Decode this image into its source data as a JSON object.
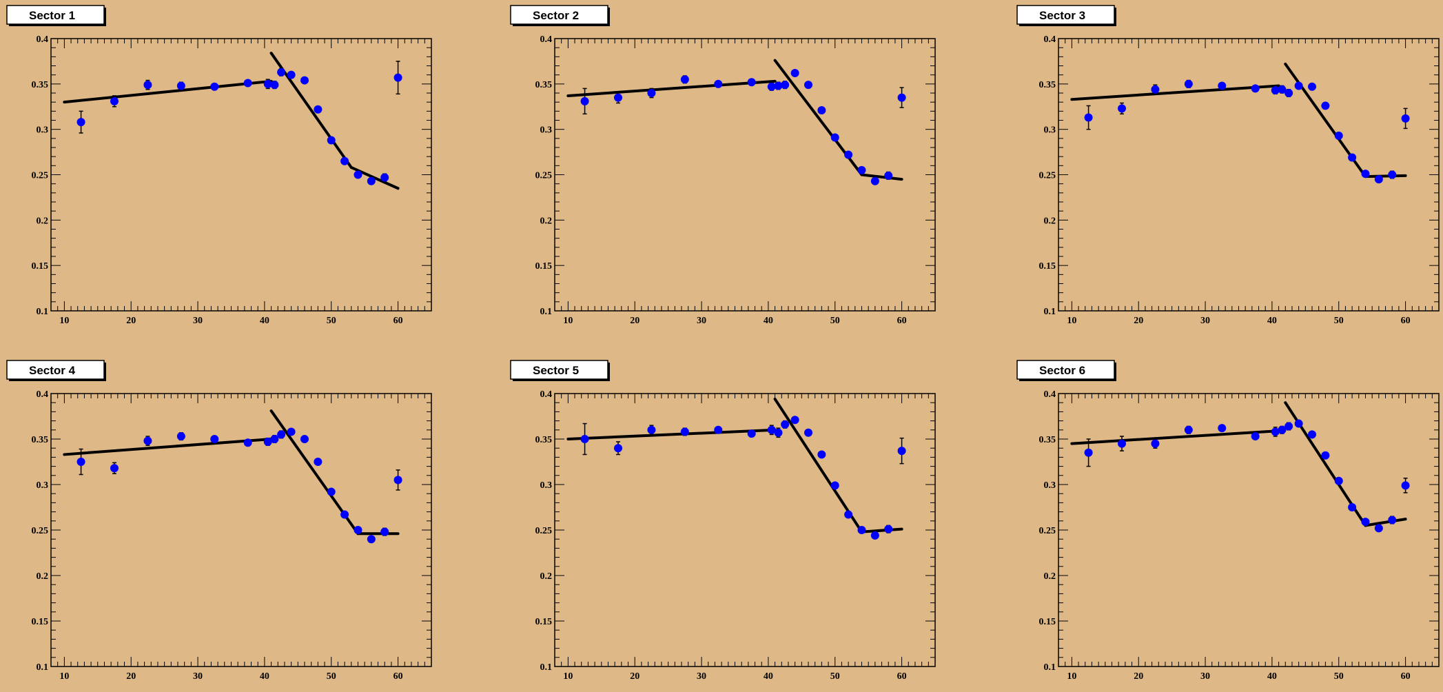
{
  "colors": {
    "background": "#deb887",
    "marker": "#0000ff",
    "fit_line": "#000000",
    "axis": "#000000",
    "title_box": "#ffffff"
  },
  "chart_data": [
    {
      "type": "scatter",
      "title": "Sector 1",
      "xlim": [
        8,
        65
      ],
      "ylim": [
        0.1,
        0.4
      ],
      "x_ticks": [
        "10",
        "20",
        "30",
        "40",
        "50",
        "60"
      ],
      "y_ticks": [
        "0.1",
        "0.15",
        "0.2",
        "0.25",
        "0.3",
        "0.35",
        "0.4"
      ],
      "points": [
        {
          "x": 12.5,
          "y": 0.308,
          "err": 0.012
        },
        {
          "x": 17.5,
          "y": 0.331,
          "err": 0.006
        },
        {
          "x": 22.5,
          "y": 0.349,
          "err": 0.005
        },
        {
          "x": 27.5,
          "y": 0.348,
          "err": 0.004
        },
        {
          "x": 32.5,
          "y": 0.347,
          "err": 0.003
        },
        {
          "x": 37.5,
          "y": 0.351,
          "err": 0.003
        },
        {
          "x": 40.5,
          "y": 0.35,
          "err": 0.005
        },
        {
          "x": 41.5,
          "y": 0.349,
          "err": 0.004
        },
        {
          "x": 42.5,
          "y": 0.363,
          "err": 0.004
        },
        {
          "x": 44.0,
          "y": 0.36,
          "err": 0.003
        },
        {
          "x": 46.0,
          "y": 0.354,
          "err": 0.003
        },
        {
          "x": 48.0,
          "y": 0.322,
          "err": 0.003
        },
        {
          "x": 50.0,
          "y": 0.288,
          "err": 0.003
        },
        {
          "x": 52.0,
          "y": 0.265,
          "err": 0.003
        },
        {
          "x": 54.0,
          "y": 0.25,
          "err": 0.003
        },
        {
          "x": 56.0,
          "y": 0.243,
          "err": 0.003
        },
        {
          "x": 58.0,
          "y": 0.247,
          "err": 0.004
        },
        {
          "x": 60.0,
          "y": 0.357,
          "err": 0.018
        }
      ],
      "fit_segments": [
        [
          [
            10,
            0.33
          ],
          [
            41,
            0.353
          ]
        ],
        [
          [
            41,
            0.384
          ],
          [
            53,
            0.258
          ]
        ],
        [
          [
            53,
            0.258
          ],
          [
            60,
            0.235
          ]
        ]
      ]
    },
    {
      "type": "scatter",
      "title": "Sector 2",
      "xlim": [
        8,
        65
      ],
      "ylim": [
        0.1,
        0.4
      ],
      "x_ticks": [
        "10",
        "20",
        "30",
        "40",
        "50",
        "60"
      ],
      "y_ticks": [
        "0.1",
        "0.15",
        "0.2",
        "0.25",
        "0.3",
        "0.35",
        "0.4"
      ],
      "points": [
        {
          "x": 12.5,
          "y": 0.331,
          "err": 0.014
        },
        {
          "x": 17.5,
          "y": 0.335,
          "err": 0.006
        },
        {
          "x": 22.5,
          "y": 0.34,
          "err": 0.005
        },
        {
          "x": 27.5,
          "y": 0.355,
          "err": 0.004
        },
        {
          "x": 32.5,
          "y": 0.35,
          "err": 0.003
        },
        {
          "x": 37.5,
          "y": 0.352,
          "err": 0.003
        },
        {
          "x": 40.5,
          "y": 0.347,
          "err": 0.004
        },
        {
          "x": 41.5,
          "y": 0.348,
          "err": 0.004
        },
        {
          "x": 42.5,
          "y": 0.349,
          "err": 0.004
        },
        {
          "x": 44.0,
          "y": 0.362,
          "err": 0.003
        },
        {
          "x": 46.0,
          "y": 0.349,
          "err": 0.003
        },
        {
          "x": 48.0,
          "y": 0.321,
          "err": 0.003
        },
        {
          "x": 50.0,
          "y": 0.291,
          "err": 0.003
        },
        {
          "x": 52.0,
          "y": 0.272,
          "err": 0.003
        },
        {
          "x": 54.0,
          "y": 0.255,
          "err": 0.003
        },
        {
          "x": 56.0,
          "y": 0.243,
          "err": 0.003
        },
        {
          "x": 58.0,
          "y": 0.249,
          "err": 0.004
        },
        {
          "x": 60.0,
          "y": 0.335,
          "err": 0.011
        }
      ],
      "fit_segments": [
        [
          [
            10,
            0.337
          ],
          [
            41,
            0.353
          ]
        ],
        [
          [
            41,
            0.376
          ],
          [
            54,
            0.25
          ]
        ],
        [
          [
            54,
            0.25
          ],
          [
            60,
            0.245
          ]
        ]
      ]
    },
    {
      "type": "scatter",
      "title": "Sector 3",
      "xlim": [
        8,
        65
      ],
      "ylim": [
        0.1,
        0.4
      ],
      "x_ticks": [
        "10",
        "20",
        "30",
        "40",
        "50",
        "60"
      ],
      "y_ticks": [
        "0.1",
        "0.15",
        "0.2",
        "0.25",
        "0.3",
        "0.35",
        "0.4"
      ],
      "points": [
        {
          "x": 12.5,
          "y": 0.313,
          "err": 0.013
        },
        {
          "x": 17.5,
          "y": 0.323,
          "err": 0.006
        },
        {
          "x": 22.5,
          "y": 0.344,
          "err": 0.005
        },
        {
          "x": 27.5,
          "y": 0.35,
          "err": 0.004
        },
        {
          "x": 32.5,
          "y": 0.348,
          "err": 0.003
        },
        {
          "x": 37.5,
          "y": 0.345,
          "err": 0.003
        },
        {
          "x": 40.5,
          "y": 0.343,
          "err": 0.004
        },
        {
          "x": 41.5,
          "y": 0.344,
          "err": 0.004
        },
        {
          "x": 42.5,
          "y": 0.34,
          "err": 0.004
        },
        {
          "x": 44.0,
          "y": 0.348,
          "err": 0.003
        },
        {
          "x": 46.0,
          "y": 0.347,
          "err": 0.003
        },
        {
          "x": 48.0,
          "y": 0.326,
          "err": 0.003
        },
        {
          "x": 50.0,
          "y": 0.293,
          "err": 0.003
        },
        {
          "x": 52.0,
          "y": 0.269,
          "err": 0.003
        },
        {
          "x": 54.0,
          "y": 0.251,
          "err": 0.003
        },
        {
          "x": 56.0,
          "y": 0.245,
          "err": 0.003
        },
        {
          "x": 58.0,
          "y": 0.25,
          "err": 0.004
        },
        {
          "x": 60.0,
          "y": 0.312,
          "err": 0.011
        }
      ],
      "fit_segments": [
        [
          [
            10,
            0.333
          ],
          [
            41,
            0.348
          ]
        ],
        [
          [
            42,
            0.372
          ],
          [
            54,
            0.248
          ]
        ],
        [
          [
            54,
            0.248
          ],
          [
            60,
            0.249
          ]
        ]
      ]
    },
    {
      "type": "scatter",
      "title": "Sector 4",
      "xlim": [
        8,
        65
      ],
      "ylim": [
        0.1,
        0.4
      ],
      "x_ticks": [
        "10",
        "20",
        "30",
        "40",
        "50",
        "60"
      ],
      "y_ticks": [
        "0.1",
        "0.15",
        "0.2",
        "0.25",
        "0.3",
        "0.35",
        "0.4"
      ],
      "points": [
        {
          "x": 12.5,
          "y": 0.325,
          "err": 0.014
        },
        {
          "x": 17.5,
          "y": 0.318,
          "err": 0.006
        },
        {
          "x": 22.5,
          "y": 0.348,
          "err": 0.005
        },
        {
          "x": 27.5,
          "y": 0.353,
          "err": 0.004
        },
        {
          "x": 32.5,
          "y": 0.35,
          "err": 0.003
        },
        {
          "x": 37.5,
          "y": 0.346,
          "err": 0.003
        },
        {
          "x": 40.5,
          "y": 0.347,
          "err": 0.004
        },
        {
          "x": 41.5,
          "y": 0.35,
          "err": 0.004
        },
        {
          "x": 42.5,
          "y": 0.355,
          "err": 0.004
        },
        {
          "x": 44.0,
          "y": 0.358,
          "err": 0.003
        },
        {
          "x": 46.0,
          "y": 0.35,
          "err": 0.003
        },
        {
          "x": 48.0,
          "y": 0.325,
          "err": 0.003
        },
        {
          "x": 50.0,
          "y": 0.292,
          "err": 0.003
        },
        {
          "x": 52.0,
          "y": 0.267,
          "err": 0.003
        },
        {
          "x": 54.0,
          "y": 0.25,
          "err": 0.003
        },
        {
          "x": 56.0,
          "y": 0.24,
          "err": 0.003
        },
        {
          "x": 58.0,
          "y": 0.248,
          "err": 0.004
        },
        {
          "x": 60.0,
          "y": 0.305,
          "err": 0.011
        }
      ],
      "fit_segments": [
        [
          [
            10,
            0.333
          ],
          [
            41,
            0.35
          ]
        ],
        [
          [
            41,
            0.381
          ],
          [
            54,
            0.246
          ]
        ],
        [
          [
            54,
            0.246
          ],
          [
            60,
            0.246
          ]
        ]
      ]
    },
    {
      "type": "scatter",
      "title": "Sector 5",
      "xlim": [
        8,
        65
      ],
      "ylim": [
        0.1,
        0.4
      ],
      "x_ticks": [
        "10",
        "20",
        "30",
        "40",
        "50",
        "60"
      ],
      "y_ticks": [
        "0.1",
        "0.15",
        "0.2",
        "0.25",
        "0.3",
        "0.35",
        "0.4"
      ],
      "points": [
        {
          "x": 12.5,
          "y": 0.35,
          "err": 0.017
        },
        {
          "x": 17.5,
          "y": 0.34,
          "err": 0.007
        },
        {
          "x": 22.5,
          "y": 0.36,
          "err": 0.005
        },
        {
          "x": 27.5,
          "y": 0.358,
          "err": 0.004
        },
        {
          "x": 32.5,
          "y": 0.36,
          "err": 0.003
        },
        {
          "x": 37.5,
          "y": 0.356,
          "err": 0.003
        },
        {
          "x": 40.5,
          "y": 0.36,
          "err": 0.005
        },
        {
          "x": 41.5,
          "y": 0.357,
          "err": 0.005
        },
        {
          "x": 42.5,
          "y": 0.366,
          "err": 0.004
        },
        {
          "x": 44.0,
          "y": 0.371,
          "err": 0.003
        },
        {
          "x": 46.0,
          "y": 0.357,
          "err": 0.003
        },
        {
          "x": 48.0,
          "y": 0.333,
          "err": 0.003
        },
        {
          "x": 50.0,
          "y": 0.299,
          "err": 0.003
        },
        {
          "x": 52.0,
          "y": 0.267,
          "err": 0.003
        },
        {
          "x": 54.0,
          "y": 0.25,
          "err": 0.003
        },
        {
          "x": 56.0,
          "y": 0.244,
          "err": 0.003
        },
        {
          "x": 58.0,
          "y": 0.251,
          "err": 0.004
        },
        {
          "x": 60.0,
          "y": 0.337,
          "err": 0.014
        }
      ],
      "fit_segments": [
        [
          [
            10,
            0.35
          ],
          [
            41,
            0.36
          ]
        ],
        [
          [
            41,
            0.394
          ],
          [
            54,
            0.248
          ]
        ],
        [
          [
            54,
            0.248
          ],
          [
            60,
            0.251
          ]
        ]
      ]
    },
    {
      "type": "scatter",
      "title": "Sector 6",
      "xlim": [
        8,
        65
      ],
      "ylim": [
        0.1,
        0.4
      ],
      "x_ticks": [
        "10",
        "20",
        "30",
        "40",
        "50",
        "60"
      ],
      "y_ticks": [
        "0.1",
        "0.15",
        "0.2",
        "0.25",
        "0.3",
        "0.35",
        "0.4"
      ],
      "points": [
        {
          "x": 12.5,
          "y": 0.335,
          "err": 0.015
        },
        {
          "x": 17.5,
          "y": 0.345,
          "err": 0.008
        },
        {
          "x": 22.5,
          "y": 0.345,
          "err": 0.005
        },
        {
          "x": 27.5,
          "y": 0.36,
          "err": 0.004
        },
        {
          "x": 32.5,
          "y": 0.362,
          "err": 0.003
        },
        {
          "x": 37.5,
          "y": 0.353,
          "err": 0.003
        },
        {
          "x": 40.5,
          "y": 0.358,
          "err": 0.005
        },
        {
          "x": 41.5,
          "y": 0.36,
          "err": 0.004
        },
        {
          "x": 42.5,
          "y": 0.364,
          "err": 0.004
        },
        {
          "x": 44.0,
          "y": 0.367,
          "err": 0.003
        },
        {
          "x": 46.0,
          "y": 0.355,
          "err": 0.003
        },
        {
          "x": 48.0,
          "y": 0.332,
          "err": 0.003
        },
        {
          "x": 50.0,
          "y": 0.304,
          "err": 0.003
        },
        {
          "x": 52.0,
          "y": 0.275,
          "err": 0.003
        },
        {
          "x": 54.0,
          "y": 0.259,
          "err": 0.003
        },
        {
          "x": 56.0,
          "y": 0.252,
          "err": 0.003
        },
        {
          "x": 58.0,
          "y": 0.261,
          "err": 0.004
        },
        {
          "x": 60.0,
          "y": 0.299,
          "err": 0.008
        }
      ],
      "fit_segments": [
        [
          [
            10,
            0.345
          ],
          [
            41,
            0.359
          ]
        ],
        [
          [
            42,
            0.39
          ],
          [
            54,
            0.255
          ]
        ],
        [
          [
            54,
            0.255
          ],
          [
            60,
            0.262
          ]
        ]
      ]
    }
  ]
}
